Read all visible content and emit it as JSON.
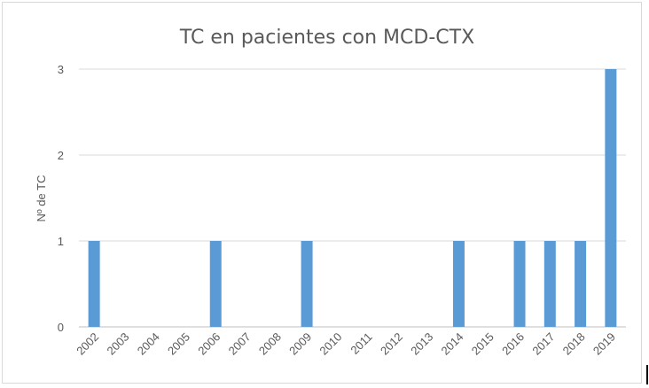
{
  "chart_data": {
    "type": "bar",
    "title": "TC en pacientes con MCD-CTX",
    "xlabel": "",
    "ylabel": "Nº de TC",
    "categories": [
      "2002",
      "2003",
      "2004",
      "2005",
      "2006",
      "2007",
      "2008",
      "2009",
      "2010",
      "2011",
      "2012",
      "2013",
      "2014",
      "2015",
      "2016",
      "2017",
      "2018",
      "2019"
    ],
    "values": [
      1,
      0,
      0,
      0,
      1,
      0,
      0,
      1,
      0,
      0,
      0,
      0,
      1,
      0,
      1,
      1,
      1,
      3
    ],
    "yticks": [
      "0",
      "1",
      "2",
      "3"
    ],
    "ylim": [
      0,
      3
    ],
    "grid": true,
    "bar_color": "#5b9bd5"
  }
}
